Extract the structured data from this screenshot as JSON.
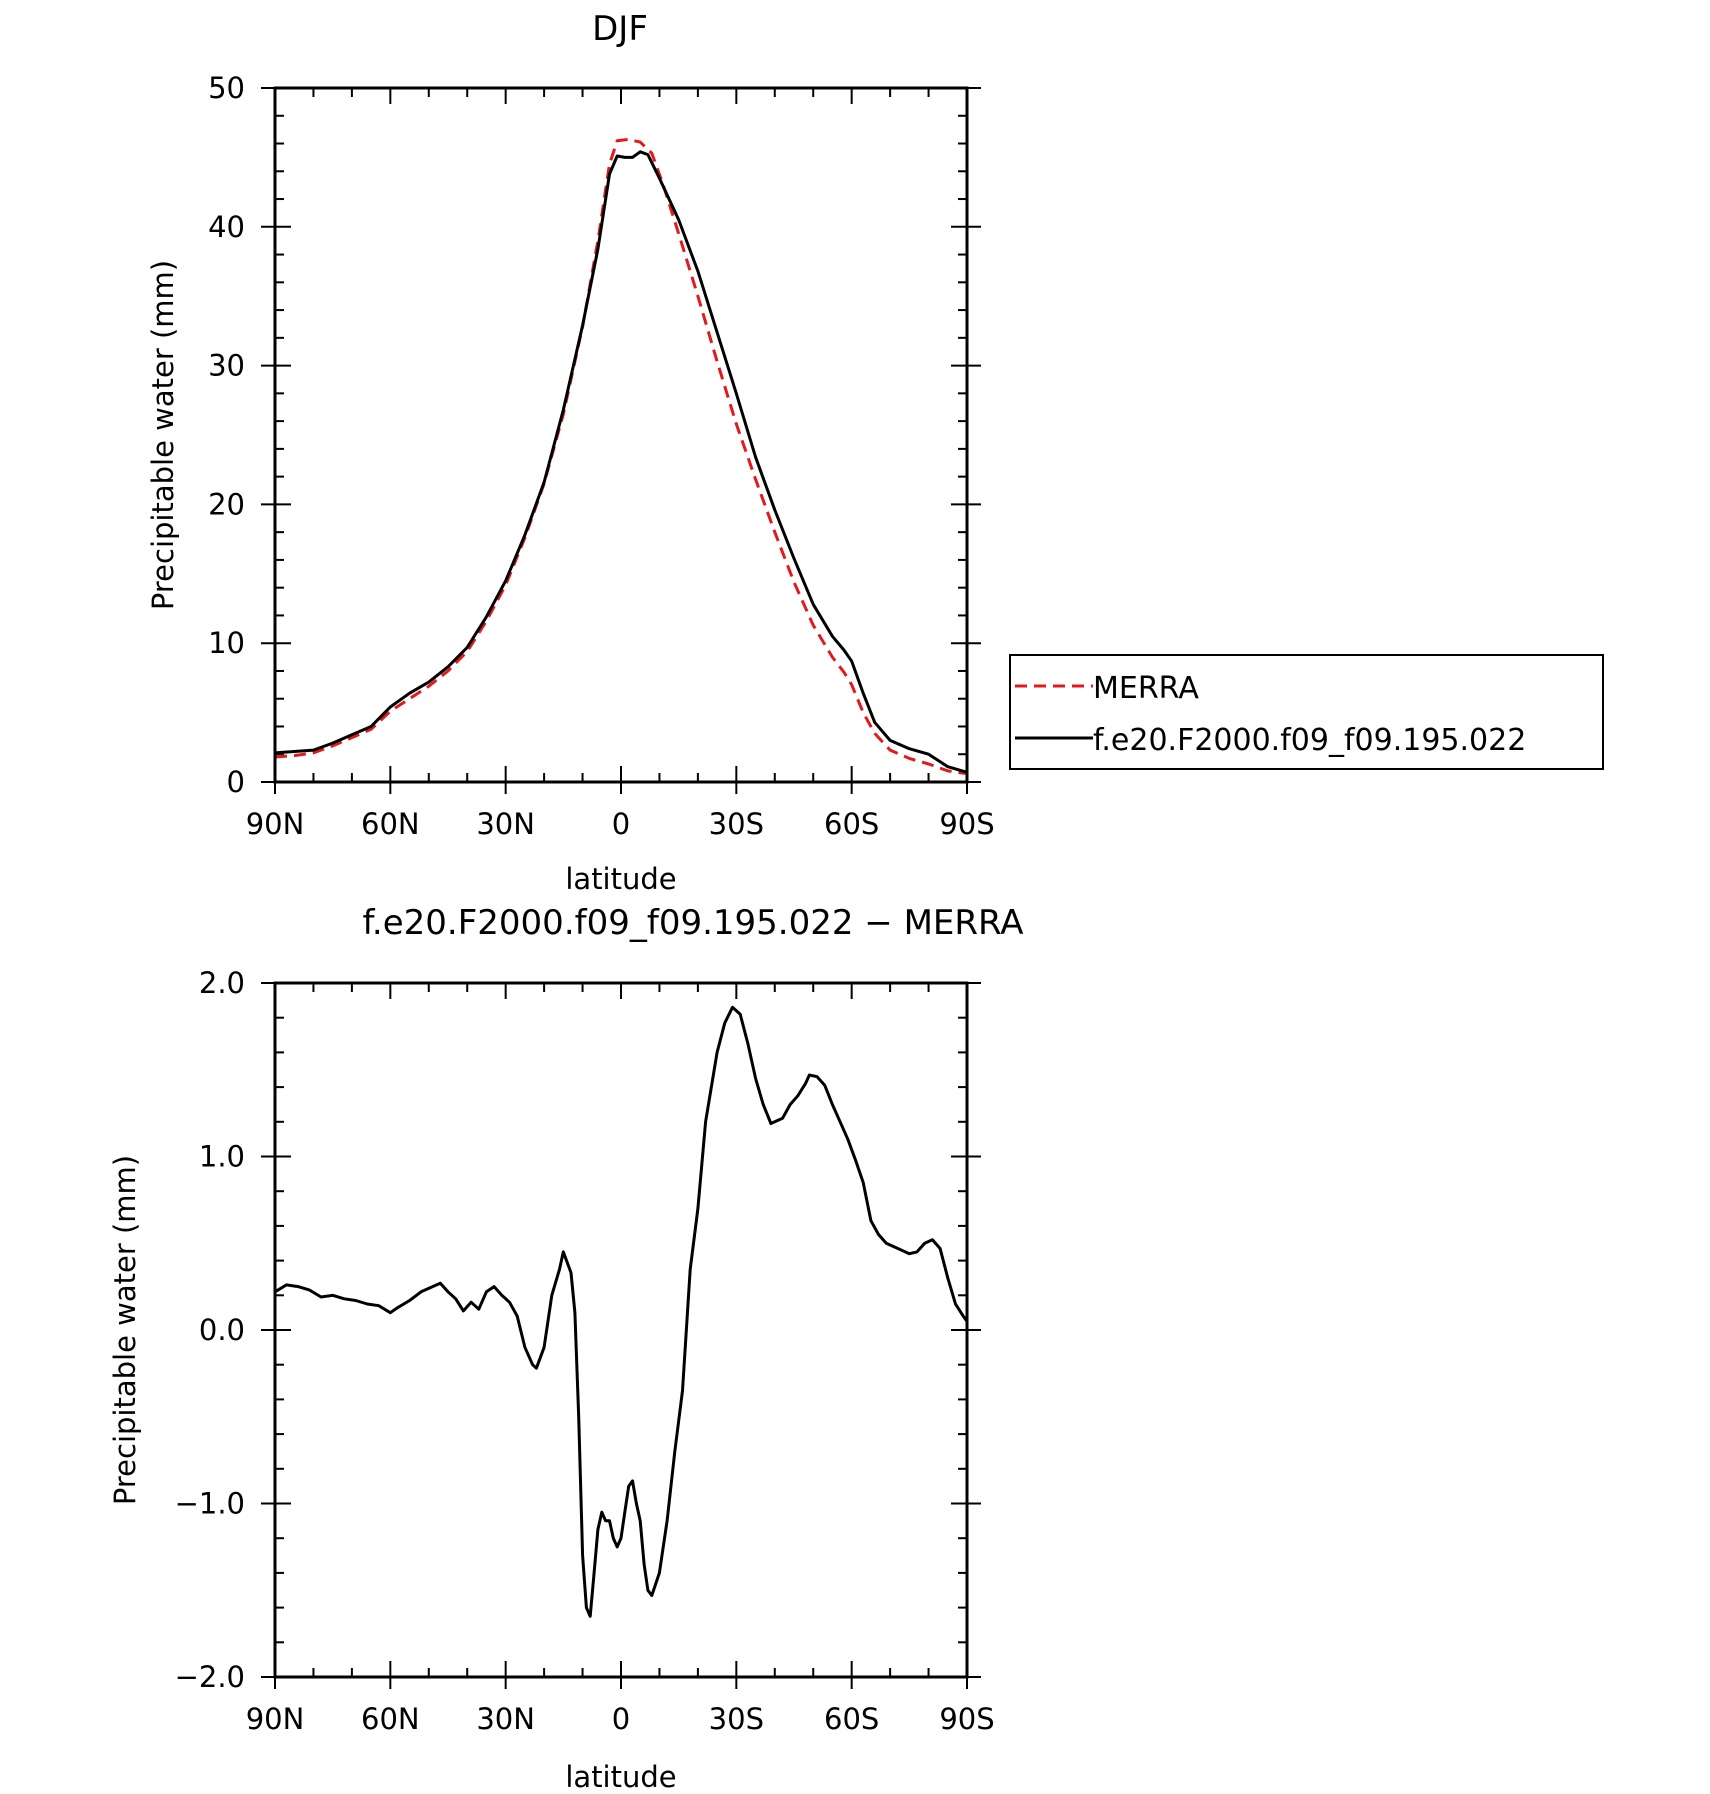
{
  "chart_data": [
    {
      "type": "line",
      "title": "DJF",
      "xlabel": "latitude",
      "ylabel": "Precipitable water (mm)",
      "xlim": [
        90,
        -90
      ],
      "ylim": [
        0,
        50
      ],
      "x_ticks": [
        {
          "value": 90,
          "label": "90N"
        },
        {
          "value": 60,
          "label": "60N"
        },
        {
          "value": 30,
          "label": "30N"
        },
        {
          "value": 0,
          "label": "0"
        },
        {
          "value": -30,
          "label": "30S"
        },
        {
          "value": -60,
          "label": "60S"
        },
        {
          "value": -90,
          "label": "90S"
        }
      ],
      "y_ticks": [
        {
          "value": 0,
          "label": "0"
        },
        {
          "value": 10,
          "label": "10"
        },
        {
          "value": 20,
          "label": "20"
        },
        {
          "value": 30,
          "label": "30"
        },
        {
          "value": 40,
          "label": "40"
        },
        {
          "value": 50,
          "label": "50"
        }
      ],
      "legend": {
        "position": "right"
      },
      "series": [
        {
          "name": "MERRA",
          "color": "#e31a1c",
          "dash": "dashed",
          "points": [
            [
              90,
              1.8
            ],
            [
              85,
              1.9
            ],
            [
              80,
              2.1
            ],
            [
              75,
              2.6
            ],
            [
              70,
              3.2
            ],
            [
              65,
              3.8
            ],
            [
              60,
              5.1
            ],
            [
              55,
              6.0
            ],
            [
              50,
              6.9
            ],
            [
              45,
              8.0
            ],
            [
              40,
              9.4
            ],
            [
              35,
              11.6
            ],
            [
              30,
              14.2
            ],
            [
              25,
              17.6
            ],
            [
              20,
              21.5
            ],
            [
              15,
              26.5
            ],
            [
              10,
              32.8
            ],
            [
              6,
              39.0
            ],
            [
              3,
              44.5
            ],
            [
              1,
              46.2
            ],
            [
              -2,
              46.3
            ],
            [
              -5,
              46.1
            ],
            [
              -8,
              45.3
            ],
            [
              -11,
              43.0
            ],
            [
              -15,
              39.5
            ],
            [
              -20,
              35.0
            ],
            [
              -25,
              30.3
            ],
            [
              -30,
              25.8
            ],
            [
              -35,
              21.8
            ],
            [
              -40,
              18.0
            ],
            [
              -45,
              14.4
            ],
            [
              -50,
              11.3
            ],
            [
              -55,
              9.0
            ],
            [
              -58,
              7.9
            ],
            [
              -60,
              7.0
            ],
            [
              -63,
              5.0
            ],
            [
              -66,
              3.5
            ],
            [
              -70,
              2.3
            ],
            [
              -75,
              1.7
            ],
            [
              -80,
              1.3
            ],
            [
              -85,
              0.8
            ],
            [
              -90,
              0.6
            ]
          ]
        },
        {
          "name": "f.e20.F2000.f09_f09.195.022",
          "color": "#000000",
          "dash": "solid",
          "points": [
            [
              90,
              2.1
            ],
            [
              85,
              2.2
            ],
            [
              80,
              2.3
            ],
            [
              75,
              2.8
            ],
            [
              70,
              3.4
            ],
            [
              65,
              4.0
            ],
            [
              60,
              5.4
            ],
            [
              55,
              6.4
            ],
            [
              50,
              7.2
            ],
            [
              45,
              8.3
            ],
            [
              40,
              9.7
            ],
            [
              35,
              11.9
            ],
            [
              30,
              14.5
            ],
            [
              25,
              17.8
            ],
            [
              20,
              21.6
            ],
            [
              15,
              26.8
            ],
            [
              10,
              32.9
            ],
            [
              6,
              38.4
            ],
            [
              3,
              43.8
            ],
            [
              1,
              45.1
            ],
            [
              -1,
              45.0
            ],
            [
              -3,
              45.0
            ],
            [
              -5,
              45.4
            ],
            [
              -7,
              45.2
            ],
            [
              -10,
              43.5
            ],
            [
              -15,
              40.5
            ],
            [
              -20,
              36.8
            ],
            [
              -25,
              32.4
            ],
            [
              -30,
              28.0
            ],
            [
              -35,
              23.4
            ],
            [
              -40,
              19.6
            ],
            [
              -45,
              16.1
            ],
            [
              -50,
              12.8
            ],
            [
              -55,
              10.5
            ],
            [
              -58,
              9.5
            ],
            [
              -60,
              8.7
            ],
            [
              -63,
              6.4
            ],
            [
              -66,
              4.3
            ],
            [
              -70,
              3.0
            ],
            [
              -75,
              2.4
            ],
            [
              -80,
              2.0
            ],
            [
              -85,
              1.1
            ],
            [
              -90,
              0.7
            ]
          ]
        }
      ]
    },
    {
      "type": "line",
      "title": "f.e20.F2000.f09_f09.195.022 − MERRA",
      "xlabel": "latitude",
      "ylabel": "Precipitable water (mm)",
      "xlim": [
        90,
        -90
      ],
      "ylim": [
        -2.0,
        2.0
      ],
      "x_ticks": [
        {
          "value": 90,
          "label": "90N"
        },
        {
          "value": 60,
          "label": "60N"
        },
        {
          "value": 30,
          "label": "30N"
        },
        {
          "value": 0,
          "label": "0"
        },
        {
          "value": -30,
          "label": "30S"
        },
        {
          "value": -60,
          "label": "60S"
        },
        {
          "value": -90,
          "label": "90S"
        }
      ],
      "y_ticks": [
        {
          "value": -2.0,
          "label": "−2.0"
        },
        {
          "value": -1.0,
          "label": "−1.0"
        },
        {
          "value": 0.0,
          "label": "0.0"
        },
        {
          "value": 1.0,
          "label": "1.0"
        },
        {
          "value": 2.0,
          "label": "2.0"
        }
      ],
      "series": [
        {
          "color": "#000000",
          "dash": "solid",
          "points": [
            [
              90,
              0.22
            ],
            [
              87,
              0.26
            ],
            [
              84,
              0.25
            ],
            [
              81,
              0.23
            ],
            [
              78,
              0.19
            ],
            [
              75,
              0.2
            ],
            [
              72,
              0.18
            ],
            [
              69,
              0.17
            ],
            [
              66,
              0.15
            ],
            [
              63,
              0.14
            ],
            [
              60,
              0.1
            ],
            [
              58,
              0.13
            ],
            [
              55,
              0.17
            ],
            [
              52,
              0.22
            ],
            [
              49,
              0.25
            ],
            [
              47,
              0.27
            ],
            [
              45,
              0.22
            ],
            [
              43,
              0.18
            ],
            [
              41,
              0.11
            ],
            [
              39,
              0.16
            ],
            [
              37,
              0.12
            ],
            [
              35,
              0.22
            ],
            [
              33,
              0.25
            ],
            [
              31,
              0.2
            ],
            [
              29,
              0.16
            ],
            [
              27,
              0.08
            ],
            [
              25,
              -0.1
            ],
            [
              23,
              -0.2
            ],
            [
              22,
              -0.22
            ],
            [
              20,
              -0.1
            ],
            [
              18,
              0.2
            ],
            [
              16,
              0.35
            ],
            [
              15,
              0.45
            ],
            [
              13,
              0.33
            ],
            [
              12,
              0.1
            ],
            [
              11,
              -0.5
            ],
            [
              10,
              -1.3
            ],
            [
              9,
              -1.6
            ],
            [
              8,
              -1.65
            ],
            [
              7,
              -1.4
            ],
            [
              6,
              -1.15
            ],
            [
              5,
              -1.05
            ],
            [
              4,
              -1.1
            ],
            [
              3,
              -1.1
            ],
            [
              2,
              -1.2
            ],
            [
              1,
              -1.25
            ],
            [
              0,
              -1.2
            ],
            [
              -1,
              -1.05
            ],
            [
              -2,
              -0.9
            ],
            [
              -3,
              -0.87
            ],
            [
              -4,
              -1.0
            ],
            [
              -5,
              -1.1
            ],
            [
              -6,
              -1.35
            ],
            [
              -7,
              -1.5
            ],
            [
              -8,
              -1.53
            ],
            [
              -10,
              -1.4
            ],
            [
              -12,
              -1.1
            ],
            [
              -14,
              -0.7
            ],
            [
              -16,
              -0.35
            ],
            [
              -18,
              0.35
            ],
            [
              -20,
              0.7
            ],
            [
              -22,
              1.2
            ],
            [
              -25,
              1.6
            ],
            [
              -27,
              1.77
            ],
            [
              -29,
              1.86
            ],
            [
              -31,
              1.82
            ],
            [
              -33,
              1.65
            ],
            [
              -35,
              1.45
            ],
            [
              -37,
              1.3
            ],
            [
              -39,
              1.19
            ],
            [
              -42,
              1.22
            ],
            [
              -44,
              1.3
            ],
            [
              -46,
              1.35
            ],
            [
              -48,
              1.42
            ],
            [
              -49,
              1.47
            ],
            [
              -51,
              1.46
            ],
            [
              -53,
              1.41
            ],
            [
              -55,
              1.3
            ],
            [
              -57,
              1.2
            ],
            [
              -59,
              1.1
            ],
            [
              -61,
              0.98
            ],
            [
              -63,
              0.85
            ],
            [
              -65,
              0.63
            ],
            [
              -67,
              0.55
            ],
            [
              -69,
              0.5
            ],
            [
              -71,
              0.48
            ],
            [
              -73,
              0.46
            ],
            [
              -75,
              0.44
            ],
            [
              -77,
              0.45
            ],
            [
              -79,
              0.5
            ],
            [
              -81,
              0.52
            ],
            [
              -83,
              0.47
            ],
            [
              -85,
              0.3
            ],
            [
              -87,
              0.15
            ],
            [
              -89,
              0.08
            ],
            [
              -90,
              0.05
            ]
          ]
        }
      ]
    }
  ]
}
